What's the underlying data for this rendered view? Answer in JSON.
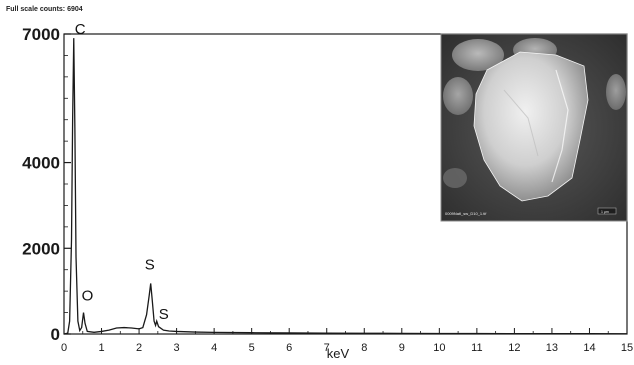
{
  "chart_data": {
    "type": "line",
    "header": "Full scale counts: 6904",
    "title": "",
    "xlabel": "keV",
    "ylabel": "",
    "xlim": [
      0,
      15
    ],
    "ylim": [
      0,
      7000
    ],
    "xticks": [
      "0",
      "1",
      "2",
      "3",
      "4",
      "5",
      "6",
      "7",
      "8",
      "9",
      "10",
      "11",
      "12",
      "13",
      "14",
      "15"
    ],
    "yticks": [
      "0",
      "2000",
      "4000",
      "7000"
    ],
    "grid": false,
    "line_color": "#1a1a1a",
    "series": [
      {
        "name": "",
        "points": [
          [
            0.0,
            0
          ],
          [
            0.1,
            20
          ],
          [
            0.15,
            300
          ],
          [
            0.2,
            2200
          ],
          [
            0.23,
            5000
          ],
          [
            0.26,
            6904
          ],
          [
            0.29,
            4800
          ],
          [
            0.32,
            1800
          ],
          [
            0.37,
            300
          ],
          [
            0.42,
            80
          ],
          [
            0.47,
            150
          ],
          [
            0.52,
            500
          ],
          [
            0.56,
            250
          ],
          [
            0.62,
            60
          ],
          [
            0.8,
            40
          ],
          [
            1.0,
            60
          ],
          [
            1.2,
            90
          ],
          [
            1.4,
            140
          ],
          [
            1.6,
            150
          ],
          [
            1.8,
            140
          ],
          [
            2.0,
            120
          ],
          [
            2.1,
            150
          ],
          [
            2.2,
            450
          ],
          [
            2.27,
            900
          ],
          [
            2.31,
            1180
          ],
          [
            2.35,
            800
          ],
          [
            2.4,
            300
          ],
          [
            2.44,
            200
          ],
          [
            2.47,
            300
          ],
          [
            2.52,
            170
          ],
          [
            2.65,
            90
          ],
          [
            2.8,
            70
          ],
          [
            3.0,
            60
          ],
          [
            3.5,
            45
          ],
          [
            4.0,
            38
          ],
          [
            5.0,
            30
          ],
          [
            6.0,
            25
          ],
          [
            7.0,
            20
          ],
          [
            8.0,
            18
          ],
          [
            9.0,
            15
          ],
          [
            10.0,
            12
          ],
          [
            11.0,
            10
          ],
          [
            12.0,
            9
          ],
          [
            13.0,
            8
          ],
          [
            14.0,
            7
          ],
          [
            15.0,
            6
          ]
        ]
      }
    ],
    "annotations": [
      {
        "text": "C",
        "x": 0.27,
        "y": 6904
      },
      {
        "text": "O",
        "x": 0.52,
        "y": 500
      },
      {
        "text": "S",
        "x": 2.31,
        "y": 1180
      },
      {
        "text": "S",
        "x": 2.47,
        "y": 300
      }
    ],
    "inset": {
      "type": "sem-image",
      "caption_left": "0009Natl_sw_D10_1.tif",
      "scale_bar": "1 μm",
      "colors": {
        "background": "#4a4a4a",
        "particle": "#d9d9d9"
      }
    }
  }
}
